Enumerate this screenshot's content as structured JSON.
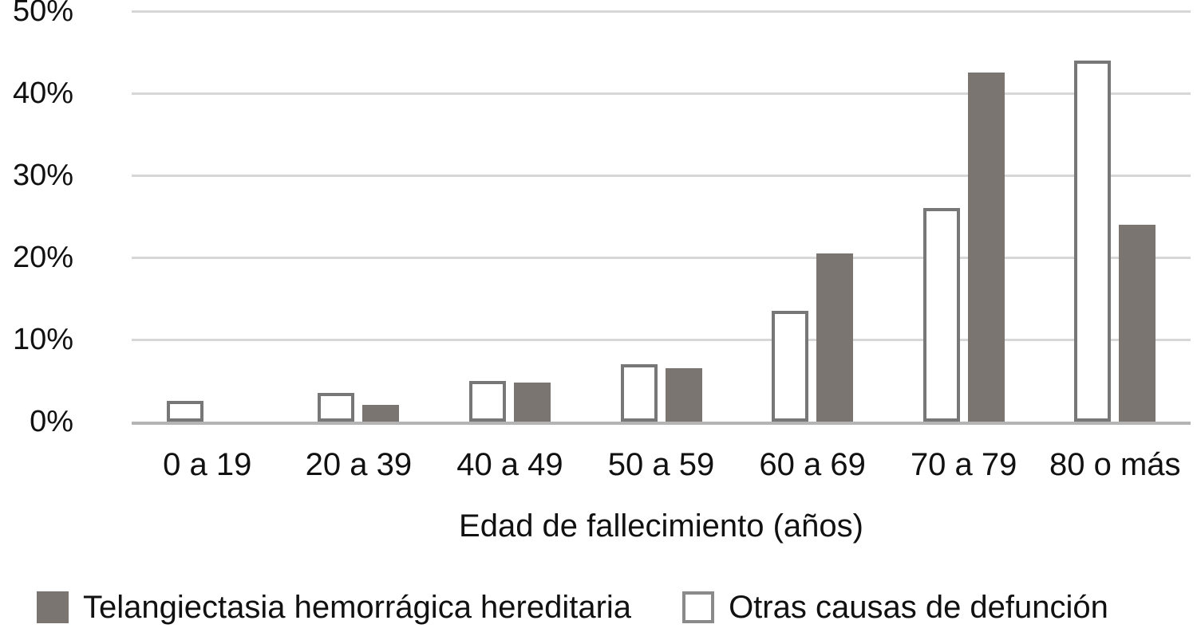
{
  "chart_data": {
    "type": "bar",
    "categories": [
      "0 a 19",
      "20 a 39",
      "40 a 49",
      "50 a 59",
      "60 a 69",
      "70 a 79",
      "80 o más"
    ],
    "series": [
      {
        "name": "Telangiectasia hemorrágica hereditaria",
        "values": [
          0,
          2,
          4.8,
          6.5,
          20.5,
          42.5,
          24
        ],
        "style": "solid",
        "fill": "#7a7571",
        "border": "#7a7571"
      },
      {
        "name": "Otras causas de defunción",
        "values": [
          2.5,
          3.5,
          5,
          7,
          13.5,
          26,
          44
        ],
        "style": "outlined",
        "fill": "#ffffff",
        "border": "#777777"
      }
    ],
    "xlabel": "Edad de fallecimiento (años)",
    "ylabel": "",
    "ylim": [
      0,
      50
    ],
    "ytick_labels": [
      "0%",
      "10%",
      "20%",
      "30%",
      "40%",
      "50%"
    ],
    "ytick_values": [
      0,
      10,
      20,
      30,
      40,
      50
    ],
    "grid": true,
    "legend_position": "bottom",
    "bar_group_order": [
      "Otras causas de defunción",
      "Telangiectasia hemorrágica hereditaria"
    ]
  },
  "colors": {
    "gridline": "#d7d7d7",
    "axis_line": "#b4b4b4",
    "text": "#111111",
    "legend_swatch_border": "#8a8a8a"
  }
}
